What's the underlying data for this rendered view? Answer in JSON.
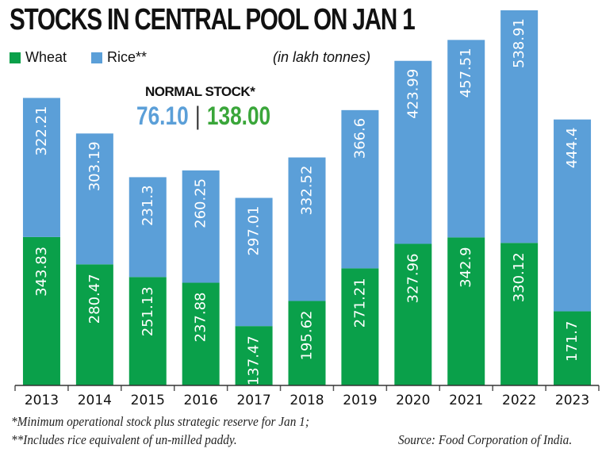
{
  "header": {
    "title": "STOCKS IN CENTRAL POOL ON JAN 1",
    "unit": "(in lakh tonnes)"
  },
  "legend": [
    {
      "label": "Wheat",
      "color": "#0aa04a"
    },
    {
      "label": "Rice**",
      "color": "#5b9fd8"
    }
  ],
  "normal_stock": {
    "label": "NORMAL STOCK*",
    "rice": "76.10",
    "separator": "|",
    "wheat": "138.00"
  },
  "footnotes": {
    "note1": "*Minimum operational stock plus strategic reserve for Jan 1;",
    "note2": "**Includes rice equivalent of un-milled paddy.",
    "source": "Source: Food Corporation of India."
  },
  "chart_data": {
    "type": "bar",
    "stacked": true,
    "title": "STOCKS IN CENTRAL POOL ON JAN 1",
    "xlabel": "",
    "ylabel": "in lakh tonnes",
    "categories": [
      "2013",
      "2014",
      "2015",
      "2016",
      "2017",
      "2018",
      "2019",
      "2020",
      "2021",
      "2022",
      "2023"
    ],
    "series": [
      {
        "name": "Wheat",
        "color": "#0aa04a",
        "values": [
          343.83,
          280.47,
          251.13,
          237.88,
          137.47,
          195.62,
          271.21,
          327.96,
          342.9,
          330.12,
          171.7
        ]
      },
      {
        "name": "Rice**",
        "color": "#5b9fd8",
        "values": [
          322.21,
          303.19,
          231.3,
          260.25,
          297.01,
          332.52,
          366.6,
          423.99,
          457.51,
          538.91,
          444.4
        ]
      }
    ],
    "data_labels": {
      "Wheat": [
        "343.83",
        "280.47",
        "251.13",
        "237.88",
        "137.47",
        "195.62",
        "271.21",
        "327.96",
        "342.9",
        "330.12",
        "171.7"
      ],
      "Rice**": [
        "322.21",
        "303.19",
        "231.3",
        "260.25",
        "297.01",
        "332.52",
        "366.6",
        "423.99",
        "457.51",
        "538.91",
        "444.4"
      ]
    },
    "ylim": [
      0,
      869.03
    ],
    "grid": false,
    "legend_position": "top-left"
  }
}
